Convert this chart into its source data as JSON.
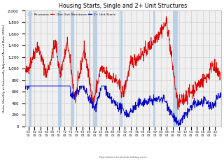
{
  "title": "Housing Starts, Single and 2+ Unit Structures",
  "ylabel": "Units, Monthly at Seasonally Adjusted Annual Rate (000s)",
  "watermark": "http://www.calculatedriskblog.com/",
  "legend": [
    "Recession",
    "One Unit Structures",
    "2+ Unit Starts"
  ],
  "line_color_one": "#dd0000",
  "line_color_multi": "#0000cc",
  "recession_color": "#b8d0e8",
  "ylim": [
    0,
    2000
  ],
  "yticks": [
    0,
    200,
    400,
    600,
    800,
    1000,
    1200,
    1400,
    1600,
    1800,
    2000
  ],
  "bg_color": "#ffffff",
  "plot_bg": "#f0f0f0",
  "grid_color": "#cccccc",
  "recession_periods": [
    [
      1960.0,
      1961.0
    ],
    [
      1969.75,
      1970.917
    ],
    [
      1973.917,
      1975.25
    ],
    [
      1980.0,
      1980.583
    ],
    [
      1981.5,
      1982.917
    ],
    [
      1990.5,
      1991.25
    ],
    [
      2001.583,
      2001.917
    ],
    [
      2007.917,
      2009.5
    ]
  ],
  "start_year": 1959,
  "end_year": 2023,
  "xlim_start": 1959.0,
  "xlim_end": 2024.0
}
